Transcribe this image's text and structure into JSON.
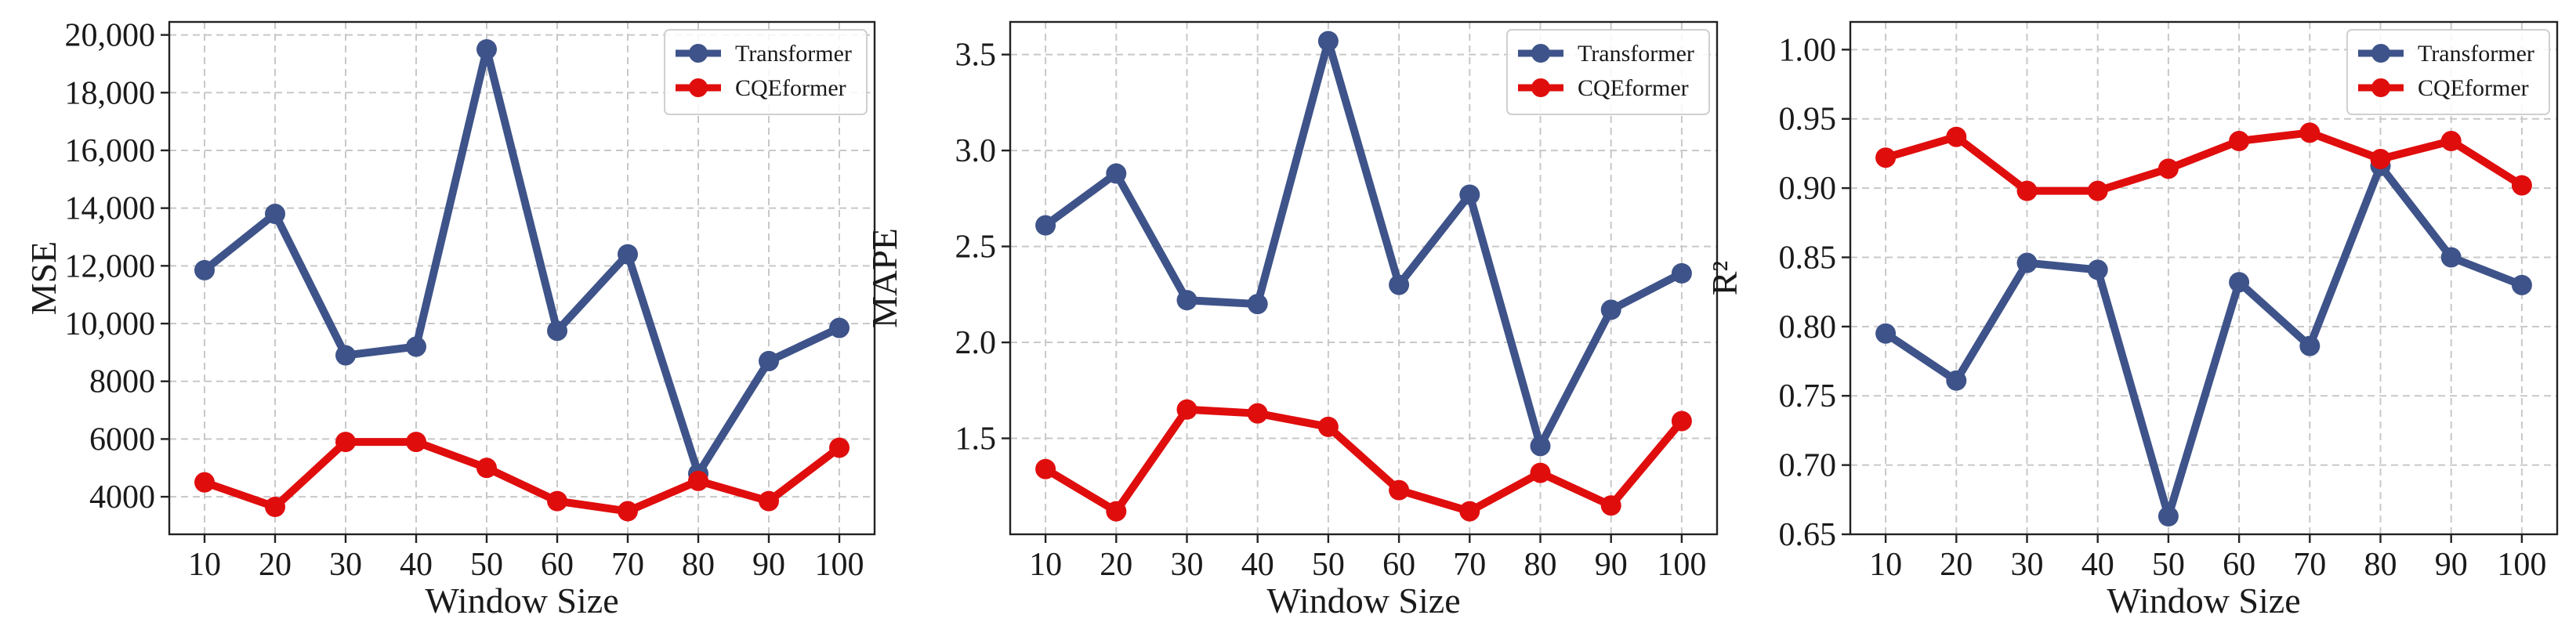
{
  "colors": {
    "transformer": "#3e5389",
    "cqeformer": "#e00d0d",
    "grid": "#c8c8c8",
    "axis": "#222222"
  },
  "legend": {
    "placement": "upper-right"
  },
  "chart_data": [
    {
      "type": "line",
      "xlabel": "Window Size",
      "ylabel": "MSE",
      "x": [
        10,
        20,
        30,
        40,
        50,
        60,
        70,
        80,
        90,
        100
      ],
      "x_ticks": [
        "10",
        "20",
        "30",
        "40",
        "50",
        "60",
        "70",
        "80",
        "90",
        "100"
      ],
      "xlim": [
        5,
        105
      ],
      "ylim": [
        2700,
        20450
      ],
      "y_ticks": [
        4000,
        6000,
        8000,
        10000,
        12000,
        14000,
        16000,
        18000,
        20000
      ],
      "y_tick_labels": [
        "4000",
        "6000",
        "8000",
        "10,000",
        "12,000",
        "14,000",
        "16,000",
        "18,000",
        "20,000"
      ],
      "grid": true,
      "series": [
        {
          "name": "Transformer",
          "values": [
            11850,
            13800,
            8900,
            9200,
            19500,
            9750,
            12400,
            4800,
            8700,
            9850
          ]
        },
        {
          "name": "CQEformer",
          "values": [
            4500,
            3650,
            5900,
            5900,
            5000,
            3850,
            3500,
            4550,
            3850,
            5700
          ]
        }
      ]
    },
    {
      "type": "line",
      "xlabel": "Window Size",
      "ylabel": "MAPE",
      "x": [
        10,
        20,
        30,
        40,
        50,
        60,
        70,
        80,
        90,
        100
      ],
      "x_ticks": [
        "10",
        "20",
        "30",
        "40",
        "50",
        "60",
        "70",
        "80",
        "90",
        "100"
      ],
      "xlim": [
        5,
        105
      ],
      "ylim": [
        1.0,
        3.67
      ],
      "y_ticks": [
        1.5,
        2.0,
        2.5,
        3.0,
        3.5
      ],
      "y_tick_labels": [
        "1.5",
        "2.0",
        "2.5",
        "3.0",
        "3.5"
      ],
      "grid": true,
      "series": [
        {
          "name": "Transformer",
          "values": [
            2.61,
            2.88,
            2.22,
            2.2,
            3.57,
            2.3,
            2.77,
            1.46,
            2.17,
            2.36
          ]
        },
        {
          "name": "CQEformer",
          "values": [
            1.34,
            1.12,
            1.65,
            1.63,
            1.56,
            1.23,
            1.12,
            1.32,
            1.15,
            1.59
          ]
        }
      ]
    },
    {
      "type": "line",
      "xlabel": "Window Size",
      "ylabel": "R²",
      "x": [
        10,
        20,
        30,
        40,
        50,
        60,
        70,
        80,
        90,
        100
      ],
      "x_ticks": [
        "10",
        "20",
        "30",
        "40",
        "50",
        "60",
        "70",
        "80",
        "90",
        "100"
      ],
      "xlim": [
        5,
        105
      ],
      "ylim": [
        0.65,
        1.02
      ],
      "y_ticks": [
        0.65,
        0.7,
        0.75,
        0.8,
        0.85,
        0.9,
        0.95,
        1.0
      ],
      "y_tick_labels": [
        "0.65",
        "0.70",
        "0.75",
        "0.80",
        "0.85",
        "0.90",
        "0.95",
        "1.00"
      ],
      "grid": true,
      "series": [
        {
          "name": "Transformer",
          "values": [
            0.795,
            0.761,
            0.846,
            0.841,
            0.663,
            0.832,
            0.786,
            0.916,
            0.85,
            0.83
          ]
        },
        {
          "name": "CQEformer",
          "values": [
            0.922,
            0.937,
            0.898,
            0.898,
            0.914,
            0.934,
            0.94,
            0.921,
            0.934,
            0.902
          ]
        }
      ]
    }
  ]
}
